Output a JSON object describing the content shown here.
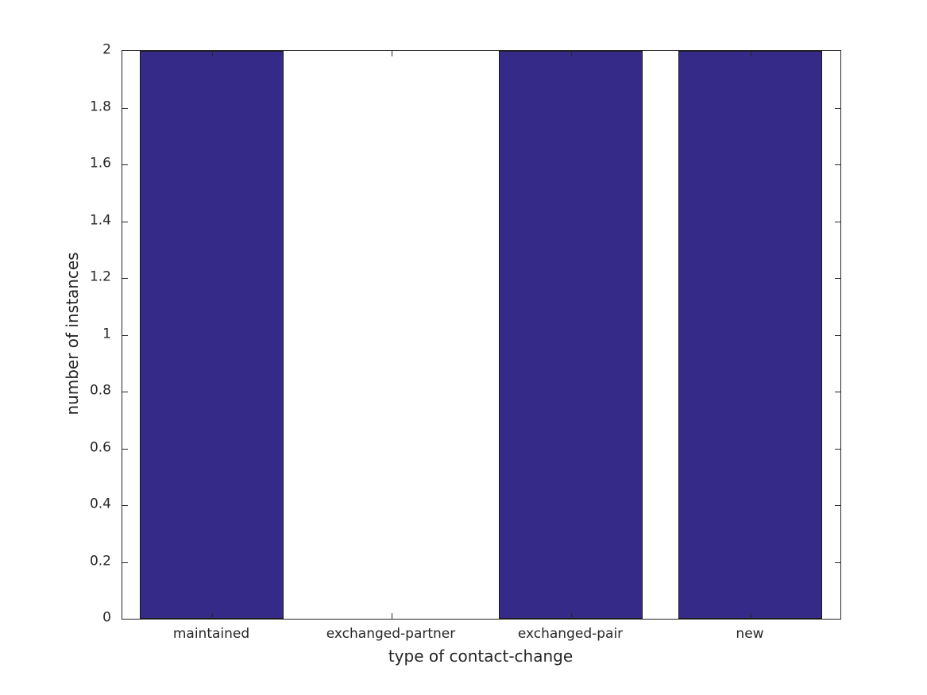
{
  "chart_data": {
    "type": "bar",
    "title": "",
    "xlabel": "type of contact-change",
    "ylabel": "number of instances",
    "categories": [
      "maintained",
      "exchanged-partner",
      "exchanged-pair",
      "new"
    ],
    "values": [
      2,
      0,
      2,
      2
    ],
    "ylim": [
      0,
      2
    ],
    "yticks": [
      0,
      0.2,
      0.4,
      0.6,
      0.8,
      1,
      1.2,
      1.4,
      1.6,
      1.8,
      2
    ],
    "ytick_labels": [
      "0",
      "0.2",
      "0.4",
      "0.6",
      "0.8",
      "1",
      "1.2",
      "1.4",
      "1.6",
      "1.8",
      "2"
    ],
    "bar_width_fraction": 0.8,
    "grid": false,
    "legend": null,
    "colors": {
      "bar_fill": "#352a87",
      "bar_edge": "#1a1a1a",
      "axis": "#262626",
      "text": "#262626",
      "figure_background": "#ffffff",
      "plot_background": "#ffffff"
    },
    "tick_direction": "in",
    "box": true
  }
}
